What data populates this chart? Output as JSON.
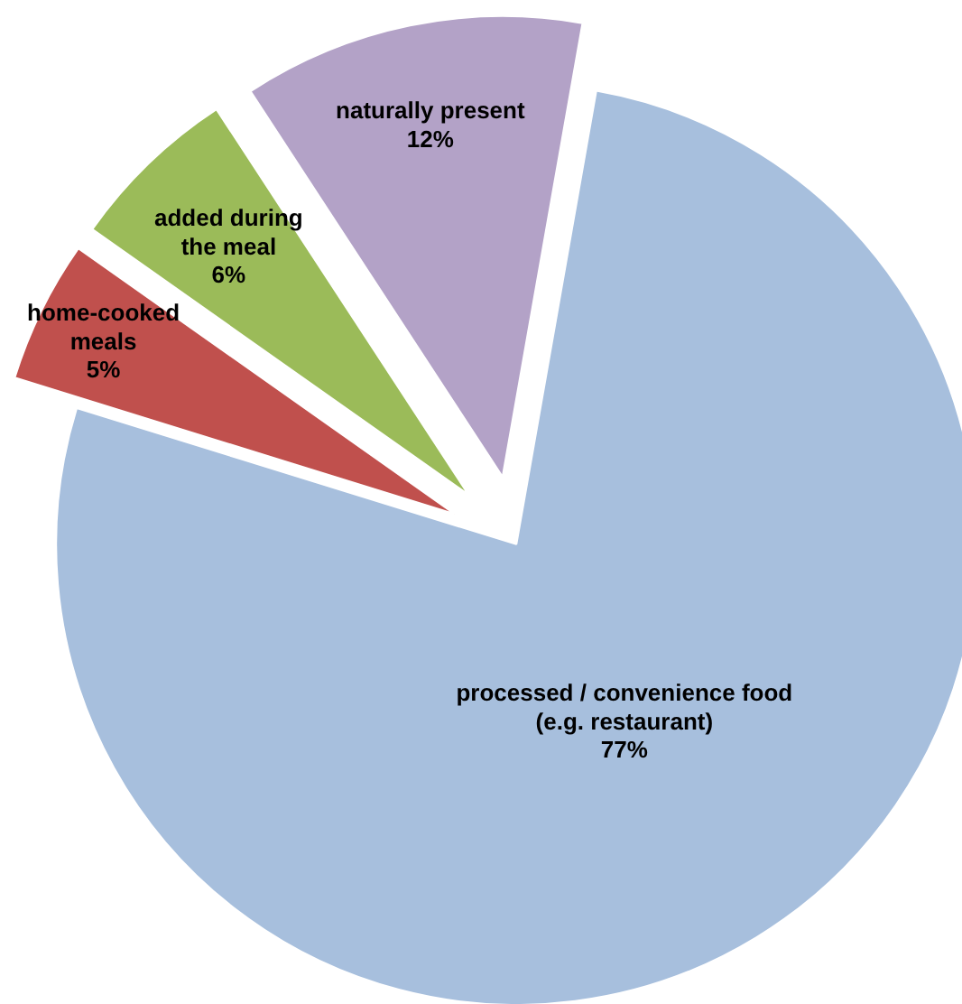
{
  "chart_data": {
    "type": "pie",
    "categories": [
      "processed / convenience food\n(e.g. restaurant)",
      "home-cooked\nmeals",
      "added during\nthe meal",
      "naturally present"
    ],
    "values": [
      77,
      5,
      6,
      12
    ],
    "value_labels": [
      "77%",
      "5%",
      "6%",
      "12%"
    ],
    "colors": [
      "#a7bfdd",
      "#c0504d",
      "#9bbb59",
      "#b3a2c7"
    ]
  }
}
